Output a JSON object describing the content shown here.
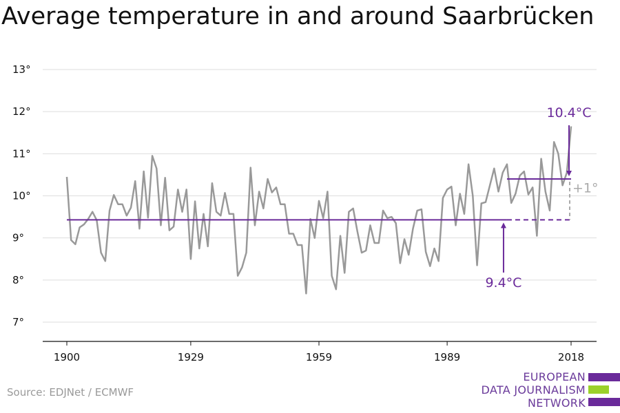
{
  "title": "Average temperature in and around Saarbrücken",
  "source": "Source: EDJNet / ECMWF",
  "logo": {
    "line1": "EUROPEAN",
    "line2": "DATA JOURNALISM",
    "line3": "NETWORK"
  },
  "colors": {
    "series": "#999999",
    "accent": "#6a2a9a",
    "grid": "#dddddd",
    "diff": "#aaaaaa",
    "logo_green": "#9bd12a"
  },
  "chart_data": {
    "type": "line",
    "title": "Average temperature in and around Saarbrücken",
    "xlabel": "",
    "ylabel": "",
    "xlim": [
      1900,
      2018
    ],
    "ylim": [
      7,
      13
    ],
    "x_ticks": [
      1900,
      1929,
      1959,
      1989,
      2018
    ],
    "x_tick_labels": [
      "1900",
      "1929",
      "1959",
      "1989",
      "2018"
    ],
    "y_ticks": [
      7,
      8,
      9,
      10,
      11,
      12,
      13
    ],
    "y_tick_labels": [
      "7°",
      "8°",
      "9°",
      "10°",
      "11°",
      "12°",
      "13°"
    ],
    "grid": "horizontal",
    "series": [
      {
        "x": [
          1900,
          1901,
          1902,
          1903,
          1904,
          1905,
          1906,
          1907,
          1908,
          1909,
          1910,
          1911,
          1912,
          1913,
          1914,
          1915,
          1916,
          1917,
          1918,
          1919,
          1920,
          1921,
          1922,
          1923,
          1924,
          1925,
          1926,
          1927,
          1928,
          1929,
          1930,
          1931,
          1932,
          1933,
          1934,
          1935,
          1936,
          1937,
          1938,
          1939,
          1940,
          1941,
          1942,
          1943,
          1944,
          1945,
          1946,
          1947,
          1948,
          1949,
          1950,
          1951,
          1952,
          1953,
          1954,
          1955,
          1956,
          1957,
          1958,
          1959,
          1960,
          1961,
          1962,
          1963,
          1964,
          1965,
          1966,
          1967,
          1968,
          1969,
          1970,
          1971,
          1972,
          1973,
          1974,
          1975,
          1976,
          1977,
          1978,
          1979,
          1980,
          1981,
          1982,
          1983,
          1984,
          1985,
          1986,
          1987,
          1988,
          1989,
          1990,
          1991,
          1992,
          1993,
          1994,
          1995,
          1996,
          1997,
          1998,
          1999,
          2000,
          2001,
          2002,
          2003,
          2004,
          2005,
          2006,
          2007,
          2008,
          2009,
          2010,
          2011,
          2012,
          2013,
          2014,
          2015,
          2016,
          2017,
          2018
        ],
        "values": [
          10.45,
          8.95,
          8.85,
          9.25,
          9.32,
          9.45,
          9.62,
          9.42,
          8.65,
          8.45,
          9.65,
          10.02,
          9.8,
          9.8,
          9.53,
          9.72,
          10.35,
          9.22,
          10.58,
          9.48,
          10.95,
          10.65,
          9.3,
          10.43,
          9.18,
          9.27,
          10.15,
          9.62,
          10.15,
          8.5,
          9.87,
          8.75,
          9.57,
          8.8,
          10.3,
          9.62,
          9.53,
          10.07,
          9.57,
          9.57,
          8.1,
          8.3,
          8.65,
          10.67,
          9.3,
          10.1,
          9.7,
          10.4,
          10.08,
          10.2,
          9.8,
          9.8,
          9.1,
          9.1,
          8.83,
          8.83,
          7.68,
          9.45,
          9.0,
          9.88,
          9.47,
          10.1,
          8.1,
          7.78,
          9.05,
          8.17,
          9.62,
          9.7,
          9.15,
          8.65,
          8.7,
          9.3,
          8.88,
          8.88,
          9.65,
          9.47,
          9.5,
          9.35,
          8.4,
          8.97,
          8.6,
          9.22,
          9.65,
          9.68,
          8.67,
          8.33,
          8.75,
          8.45,
          9.95,
          10.15,
          10.22,
          9.3,
          10.05,
          9.57,
          10.75,
          10.0,
          8.35,
          9.82,
          9.85,
          10.25,
          10.65,
          10.1,
          10.55,
          10.75,
          9.83,
          10.05,
          10.48,
          10.58,
          10.03,
          10.2,
          9.05,
          10.88,
          10.1,
          9.65,
          11.28,
          11.0,
          10.25,
          10.55,
          11.65
        ]
      }
    ],
    "annotations": {
      "baseline": {
        "label": "9.4°C",
        "value": 9.43,
        "x_start": 1900,
        "x_solid_end": 2003,
        "x_end": 2018
      },
      "recent": {
        "label": "10.4°C",
        "value": 10.4,
        "x_start": 2003,
        "x_end": 2018
      },
      "difference": {
        "label": "+1°"
      }
    }
  }
}
